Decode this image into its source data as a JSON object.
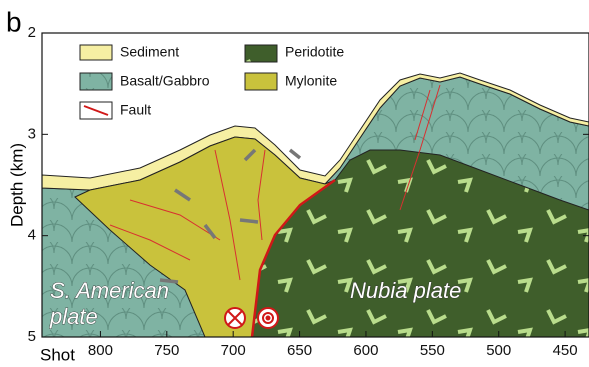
{
  "figure": {
    "panel_label": "b",
    "y_axis": {
      "label": "Depth (km)",
      "lim": [
        2,
        5
      ],
      "ticks": [
        2,
        3,
        4,
        5
      ]
    },
    "x_axis": {
      "label": "Shot",
      "lim": [
        844,
        432
      ],
      "ticks": [
        800,
        750,
        700,
        650,
        600,
        550,
        500,
        450
      ]
    },
    "legend": [
      "Sediment",
      "Basalt/Gabbro",
      "Fault",
      "Peridotite",
      "Mylonite"
    ],
    "annotations": {
      "south_american": [
        "S. American",
        "plate"
      ],
      "nubia": "Nubia plate"
    }
  }
}
